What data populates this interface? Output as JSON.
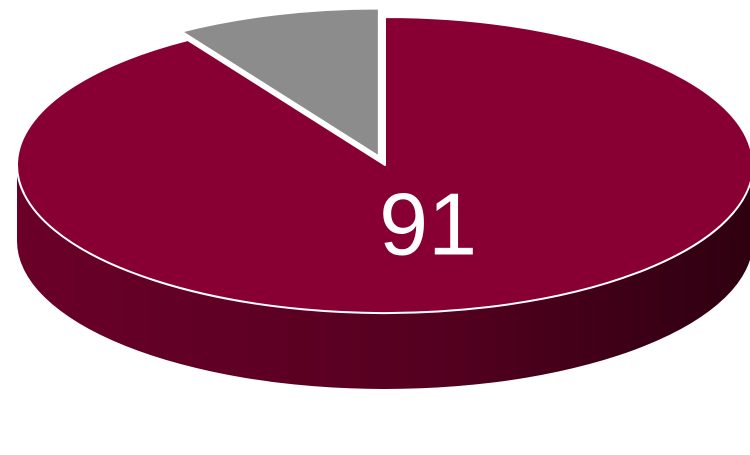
{
  "chart_data": {
    "type": "pie",
    "style": "3d",
    "slices": [
      {
        "value": 91,
        "color": "#880033",
        "data_label": "91"
      },
      {
        "value": 9,
        "color": "#8c8c8c",
        "data_label": ""
      }
    ],
    "exploded_slice": 1,
    "start_position": "12 o'clock",
    "direction": "clockwise",
    "legend": "none",
    "title": ""
  }
}
